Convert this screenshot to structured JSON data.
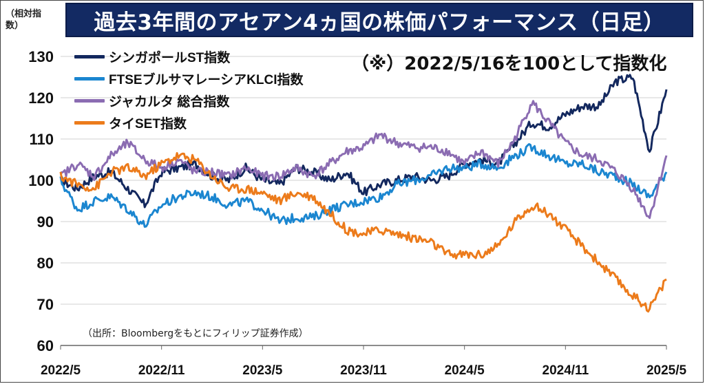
{
  "title": "過去3年間のアセアン4ヵ国の株価パフォーマンス（日足）",
  "unit_label": "（相対指数）",
  "note": "（※）2022/5/16を100として指数化",
  "source": "（出所：Bloombergをもとにフィリップ証券作成）",
  "chart_data": {
    "type": "line",
    "title": "過去3年間のアセアン4ヵ国の株価パフォーマンス（日足）",
    "xlabel": "",
    "ylabel": "（相対指数）",
    "ylim": [
      60,
      130
    ],
    "yticks": [
      60,
      70,
      80,
      90,
      100,
      110,
      120,
      130
    ],
    "x_tick_labels": [
      "2022/5",
      "2022/11",
      "2023/5",
      "2023/11",
      "2024/5",
      "2024/11",
      "2025/5"
    ],
    "x_range": [
      "2022-05-16",
      "2025-05-16"
    ],
    "grid": "horizontal",
    "legend_position": "top-left",
    "x": [
      "2022-05",
      "2022-06",
      "2022-07",
      "2022-08",
      "2022-09",
      "2022-10",
      "2022-11",
      "2022-12",
      "2023-01",
      "2023-02",
      "2023-03",
      "2023-04",
      "2023-05",
      "2023-06",
      "2023-07",
      "2023-08",
      "2023-09",
      "2023-10",
      "2023-11",
      "2023-12",
      "2024-01",
      "2024-02",
      "2024-03",
      "2024-04",
      "2024-05",
      "2024-06",
      "2024-07",
      "2024-08",
      "2024-09",
      "2024-10",
      "2024-11",
      "2024-12",
      "2025-01",
      "2025-02",
      "2025-03",
      "2025-04",
      "2025-05"
    ],
    "series": [
      {
        "name": "シンガポールST指数",
        "color": "#13285e",
        "values": [
          100,
          98,
          101,
          102,
          98,
          94,
          102,
          103,
          104,
          101,
          100,
          103,
          100,
          99,
          103,
          102,
          100,
          102,
          97,
          99,
          100,
          101,
          100,
          101,
          104,
          105,
          104,
          109,
          114,
          113,
          116,
          118,
          118,
          124,
          125,
          107,
          122
        ]
      },
      {
        "name": "FTSEブルサマレーシアKLCI指数",
        "color": "#1b86d0",
        "values": [
          100,
          93,
          95,
          96,
          93,
          89,
          94,
          96,
          97,
          96,
          94,
          95,
          93,
          90,
          91,
          91,
          93,
          94,
          95,
          96,
          99,
          100,
          101,
          103,
          103,
          104,
          103,
          106,
          108,
          106,
          104,
          104,
          102,
          101,
          99,
          96,
          102
        ]
      },
      {
        "name": "ジャカルタ 総合指数",
        "color": "#8b6cb2",
        "values": [
          101,
          104,
          101,
          106,
          109,
          105,
          103,
          105,
          102,
          102,
          101,
          103,
          101,
          101,
          103,
          101,
          104,
          107,
          108,
          111,
          109,
          108,
          108,
          107,
          104,
          107,
          104,
          110,
          119,
          114,
          109,
          106,
          105,
          102,
          98,
          91,
          106
        ]
      },
      {
        "name": "タイSET指数",
        "color": "#ec7b1b",
        "values": [
          101,
          99,
          98,
          102,
          103,
          101,
          104,
          106,
          105,
          101,
          98,
          98,
          97,
          95,
          97,
          96,
          92,
          88,
          87,
          88,
          87,
          86,
          85,
          82,
          82,
          82,
          84,
          90,
          94,
          92,
          88,
          84,
          80,
          76,
          72,
          69,
          76
        ]
      }
    ]
  }
}
